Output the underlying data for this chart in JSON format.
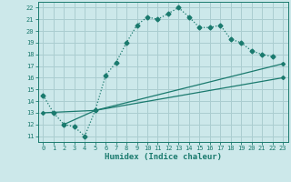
{
  "title": "",
  "xlabel": "Humidex (Indice chaleur)",
  "bg_color": "#cce8ea",
  "grid_color": "#aacdd0",
  "line_color": "#1a7a6e",
  "xlim": [
    -0.5,
    23.5
  ],
  "ylim": [
    10.5,
    22.5
  ],
  "xticks": [
    0,
    1,
    2,
    3,
    4,
    5,
    6,
    7,
    8,
    9,
    10,
    11,
    12,
    13,
    14,
    15,
    16,
    17,
    18,
    19,
    20,
    21,
    22,
    23
  ],
  "yticks": [
    11,
    12,
    13,
    14,
    15,
    16,
    17,
    18,
    19,
    20,
    21,
    22
  ],
  "curve1_x": [
    0,
    1,
    2,
    3,
    4,
    5,
    6,
    7,
    8,
    9,
    10,
    11,
    12,
    13,
    14,
    15,
    16,
    17,
    18,
    19,
    20,
    21,
    22
  ],
  "curve1_y": [
    14.5,
    13.0,
    12.0,
    11.8,
    11.0,
    13.2,
    16.2,
    17.3,
    19.0,
    20.5,
    21.2,
    21.0,
    21.5,
    22.0,
    21.2,
    20.3,
    20.3,
    20.5,
    19.3,
    19.0,
    18.3,
    18.0,
    17.8
  ],
  "line2_x": [
    0,
    5,
    23
  ],
  "line2_y": [
    13.0,
    13.2,
    17.2
  ],
  "line3_x": [
    2,
    5,
    23
  ],
  "line3_y": [
    12.0,
    13.2,
    16.0
  ],
  "xlabel_fontsize": 6.5,
  "tick_fontsize": 5.0
}
